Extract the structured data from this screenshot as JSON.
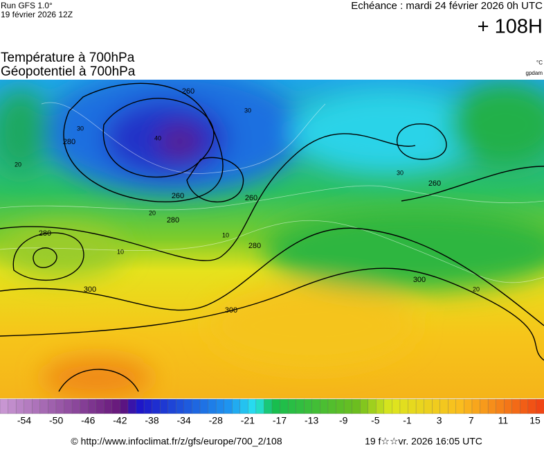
{
  "header": {
    "run": "Run GFS 1.0°",
    "run_date": "19 février 2026 12Z",
    "valid": "Echéance : mardi 24 février 2026 0h UTC",
    "lead": "+ 108H"
  },
  "titles": [
    "Température à 700hPa",
    "Géopotentiel à 700hPa"
  ],
  "units": [
    "°C",
    "gpdam"
  ],
  "contour_labels": [
    "280",
    "260",
    "280",
    "260",
    "260",
    "280",
    "280",
    "300",
    "300",
    "300",
    "260",
    "30",
    "30",
    "40",
    "20",
    "20",
    "10",
    "10",
    "20",
    "30"
  ],
  "colorbar": {
    "labels": [
      -54,
      -50,
      -46,
      -42,
      -38,
      -34,
      -28,
      -21,
      -17,
      -13,
      -9,
      -5,
      -1,
      3,
      7,
      11,
      15
    ]
  },
  "footer": {
    "url": "© http://www.infoclimat.fr/z/gfs/europe/700_2/108",
    "stamp": "19 f☆☆vr. 2026 16:05 UTC"
  }
}
